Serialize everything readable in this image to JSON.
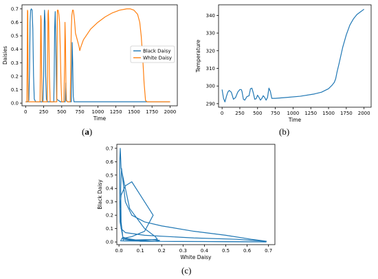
{
  "panel_labels": {
    "a": "a",
    "b": "b",
    "c": "c"
  },
  "colors": {
    "black_daisy": "#1f77b4",
    "white_daisy": "#ff7f0e"
  },
  "chart_data": [
    {
      "id": "a",
      "type": "line",
      "xlabel": "Time",
      "ylabel": "Daisies",
      "xlim": [
        -50,
        2100
      ],
      "ylim": [
        -0.02,
        0.73
      ],
      "xticks": [
        0,
        250,
        500,
        750,
        1000,
        1250,
        1500,
        1750,
        2000
      ],
      "yticks": [
        0.0,
        0.1,
        0.2,
        0.3,
        0.4,
        0.5,
        0.6,
        0.7
      ],
      "ytick_labels": [
        "0.0",
        "0.1",
        "0.2",
        "0.3",
        "0.4",
        "0.5",
        "0.6",
        "0.7"
      ],
      "legend": "right",
      "series": [
        {
          "name": "Black Daisy",
          "color": "#1f77b4",
          "x": [
            0,
            30,
            45,
            55,
            62,
            70,
            80,
            90,
            100,
            110,
            120,
            140,
            160,
            240,
            250,
            258,
            262,
            270,
            278,
            288,
            300,
            330,
            390,
            396,
            402,
            410,
            418,
            430,
            480,
            548,
            552,
            556,
            560,
            565,
            580,
            632,
            638,
            645,
            652,
            660,
            670,
            2000
          ],
          "y": [
            0.01,
            0.01,
            0.02,
            0.25,
            0.6,
            0.69,
            0.7,
            0.69,
            0.55,
            0.2,
            0.03,
            0.01,
            0.01,
            0.01,
            0.2,
            0.6,
            0.69,
            0.6,
            0.2,
            0.03,
            0.01,
            0.01,
            0.01,
            0.2,
            0.55,
            0.68,
            0.45,
            0.03,
            0.01,
            0.01,
            0.08,
            0.15,
            0.08,
            0.02,
            0.01,
            0.01,
            0.2,
            0.45,
            0.3,
            0.05,
            0.01,
            0.01
          ]
        },
        {
          "name": "White Daisy",
          "color": "#ff7f0e",
          "x": [
            0,
            18,
            22,
            26,
            30,
            34,
            38,
            200,
            205,
            210,
            215,
            220,
            228,
            236,
            300,
            305,
            310,
            315,
            320,
            330,
            340,
            432,
            436,
            440,
            450,
            460,
            470,
            480,
            490,
            500,
            530,
            540,
            545,
            552,
            560,
            580,
            618,
            625,
            632,
            640,
            650,
            660,
            668,
            676,
            685,
            690,
            700,
            720,
            740,
            750,
            760,
            780,
            800,
            900,
            1000,
            1100,
            1200,
            1300,
            1400,
            1450,
            1500,
            1550,
            1580,
            1600,
            1620,
            1640,
            1660,
            1680,
            2000
          ],
          "y": [
            0.01,
            0.01,
            0.3,
            0.69,
            0.68,
            0.2,
            0.01,
            0.01,
            0.3,
            0.65,
            0.62,
            0.3,
            0.02,
            0.01,
            0.01,
            0.3,
            0.66,
            0.69,
            0.6,
            0.2,
            0.01,
            0.01,
            0.4,
            0.69,
            0.69,
            0.66,
            0.6,
            0.4,
            0.15,
            0.01,
            0.01,
            0.3,
            0.6,
            0.46,
            0.02,
            0.01,
            0.01,
            0.3,
            0.55,
            0.65,
            0.69,
            0.69,
            0.66,
            0.62,
            0.56,
            0.52,
            0.5,
            0.46,
            0.42,
            0.39,
            0.41,
            0.44,
            0.47,
            0.55,
            0.6,
            0.64,
            0.67,
            0.69,
            0.7,
            0.7,
            0.69,
            0.66,
            0.6,
            0.5,
            0.35,
            0.15,
            0.02,
            0.01,
            0.01
          ]
        }
      ]
    },
    {
      "id": "b",
      "type": "line",
      "xlabel": "Time",
      "ylabel": "Temperature",
      "xlim": [
        -50,
        2100
      ],
      "ylim": [
        288,
        346
      ],
      "xticks": [
        0,
        250,
        500,
        750,
        1000,
        1250,
        1500,
        1750,
        2000
      ],
      "yticks": [
        290,
        300,
        310,
        320,
        330,
        340
      ],
      "series": [
        {
          "name": "",
          "color": "#1f77b4",
          "x": [
            0,
            20,
            40,
            60,
            80,
            100,
            130,
            160,
            190,
            220,
            250,
            270,
            280,
            300,
            320,
            350,
            380,
            400,
            420,
            440,
            460,
            480,
            500,
            520,
            540,
            560,
            580,
            600,
            620,
            640,
            660,
            680,
            700,
            750,
            900,
            1100,
            1300,
            1400,
            1500,
            1550,
            1580,
            1600,
            1620,
            1650,
            1700,
            1750,
            1800,
            1850,
            1900,
            1950,
            2000
          ],
          "y": [
            298,
            293,
            291,
            294,
            296.5,
            297.5,
            296.5,
            292.5,
            293.5,
            296.5,
            298,
            298,
            297,
            292.5,
            292,
            294,
            294.5,
            298.5,
            298.8,
            296,
            292.5,
            292.8,
            294.8,
            293.5,
            292,
            293,
            294.5,
            293.5,
            292,
            293.5,
            298.8,
            297,
            293,
            293,
            293.5,
            294.2,
            295.5,
            296.5,
            298.5,
            300.5,
            302,
            304,
            308,
            313,
            322,
            329,
            334.5,
            338,
            340.5,
            342,
            343.5
          ]
        }
      ]
    },
    {
      "id": "c",
      "type": "line",
      "xlabel": "White Daisy",
      "ylabel": "Black Daisy",
      "xlim": [
        -0.01,
        0.73
      ],
      "ylim": [
        -0.02,
        0.73
      ],
      "xticks": [
        0.0,
        0.1,
        0.2,
        0.3,
        0.4,
        0.5,
        0.6,
        0.7
      ],
      "yticks": [
        0.0,
        0.1,
        0.2,
        0.3,
        0.4,
        0.5,
        0.6,
        0.7
      ],
      "xtick_labels": [
        "0.0",
        "0.1",
        "0.2",
        "0.3",
        "0.4",
        "0.5",
        "0.6",
        "0.7"
      ],
      "ytick_labels": [
        "0.0",
        "0.1",
        "0.2",
        "0.3",
        "0.4",
        "0.5",
        "0.6",
        "0.7"
      ],
      "series": [
        {
          "name": "",
          "color": "#1f77b4",
          "x": [
            0.69,
            0.5,
            0.3,
            0.1,
            0.02,
            0.005,
            0.003,
            0.004,
            0.006,
            0.01,
            0.05,
            0.12,
            0.17,
            0.18,
            0.08,
            0.02,
            0.01,
            0.008,
            0.012,
            0.03,
            0.06,
            0.12,
            0.2,
            0.35,
            0.5,
            0.62,
            0.67,
            0.69,
            0.55,
            0.35,
            0.12,
            0.03,
            0.01,
            0.005,
            0.01,
            0.03,
            0.06,
            0.1,
            0.16,
            0.12,
            0.06,
            0.03,
            0.02,
            0.025,
            0.04,
            0.1,
            0.17,
            0.19,
            0.15,
            0.06,
            0.015,
            0.008,
            0.2,
            0.4,
            0.6,
            0.69
          ],
          "y": [
            0.0,
            0.002,
            0.004,
            0.005,
            0.02,
            0.15,
            0.4,
            0.62,
            0.7,
            0.55,
            0.25,
            0.1,
            0.04,
            0.02,
            0.01,
            0.008,
            0.15,
            0.4,
            0.55,
            0.3,
            0.2,
            0.15,
            0.12,
            0.08,
            0.05,
            0.02,
            0.01,
            0.005,
            0.02,
            0.03,
            0.05,
            0.07,
            0.1,
            0.25,
            0.35,
            0.42,
            0.45,
            0.35,
            0.2,
            0.08,
            0.04,
            0.03,
            0.035,
            0.03,
            0.025,
            0.01,
            0.005,
            0.012,
            0.018,
            0.015,
            0.03,
            0.008,
            0.004,
            0.003,
            0.002,
            0.0
          ]
        }
      ]
    }
  ]
}
